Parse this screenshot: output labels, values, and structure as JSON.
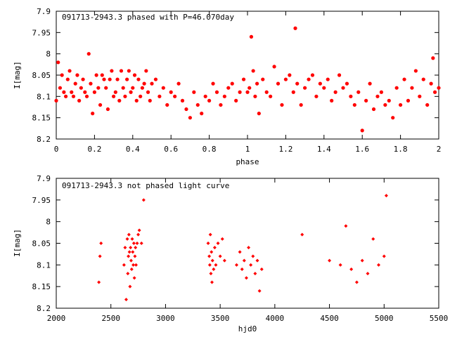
{
  "colors": {
    "points": "#ff0000",
    "axes": "#000000",
    "background": "#ffffff"
  },
  "chart_data": [
    {
      "type": "scatter",
      "title": "091713-2943.3 phased with P=46.070day",
      "xlabel": "phase",
      "ylabel": "I[mag]",
      "xlim": [
        0,
        2
      ],
      "ylim": [
        8.2,
        7.9
      ],
      "y_inverted": true,
      "marker": "filled-circle",
      "xticks": [
        "0",
        "0.2",
        "0.4",
        "0.6",
        "0.8",
        "1",
        "1.2",
        "1.4",
        "1.6",
        "1.8",
        "2"
      ],
      "yticks": [
        "7.9",
        "7.95",
        "8",
        "8.05",
        "8.1",
        "8.15",
        "8.2"
      ],
      "xtick_values": [
        0,
        0.2,
        0.4,
        0.6,
        0.8,
        1.0,
        1.2,
        1.4,
        1.6,
        1.8,
        2.0
      ],
      "ytick_values": [
        7.9,
        7.95,
        8.0,
        8.05,
        8.1,
        8.15,
        8.2
      ],
      "series": [
        {
          "x": [
            0.0,
            0.01,
            0.02,
            0.03,
            0.04,
            0.05,
            0.06,
            0.07,
            0.08,
            0.09,
            0.1,
            0.11,
            0.12,
            0.13,
            0.14,
            0.15,
            0.16,
            0.17,
            0.18,
            0.19,
            0.2,
            0.21,
            0.22,
            0.23,
            0.24,
            0.25,
            0.26,
            0.27,
            0.28,
            0.29,
            0.3,
            0.31,
            0.32,
            0.33,
            0.34,
            0.35,
            0.36,
            0.37,
            0.38,
            0.39,
            0.4,
            0.41,
            0.42,
            0.43,
            0.44,
            0.45,
            0.46,
            0.47,
            0.48,
            0.49,
            0.5,
            0.52,
            0.54,
            0.56,
            0.58,
            0.6,
            0.62,
            0.64,
            0.66,
            0.68,
            0.7,
            0.72,
            0.74,
            0.76,
            0.78,
            0.8,
            0.82,
            0.84,
            0.86,
            0.88,
            0.9,
            0.92,
            0.94,
            0.96,
            0.98,
            1.0,
            1.01,
            1.02,
            1.03,
            1.04,
            1.05,
            1.06,
            1.08,
            1.1,
            1.12,
            1.14,
            1.16,
            1.18,
            1.2,
            1.22,
            1.24,
            1.25,
            1.26,
            1.28,
            1.3,
            1.32,
            1.34,
            1.36,
            1.38,
            1.4,
            1.42,
            1.44,
            1.46,
            1.48,
            1.5,
            1.52,
            1.54,
            1.56,
            1.58,
            1.6,
            1.62,
            1.64,
            1.66,
            1.68,
            1.7,
            1.72,
            1.74,
            1.76,
            1.78,
            1.8,
            1.82,
            1.84,
            1.86,
            1.88,
            1.9,
            1.92,
            1.94,
            1.96,
            1.97,
            1.98,
            2.0
          ],
          "y": [
            8.11,
            8.02,
            8.08,
            8.05,
            8.09,
            8.1,
            8.06,
            8.04,
            8.09,
            8.1,
            8.07,
            8.05,
            8.11,
            8.08,
            8.06,
            8.09,
            8.1,
            8.0,
            8.07,
            8.14,
            8.09,
            8.05,
            8.08,
            8.12,
            8.05,
            8.06,
            8.08,
            8.13,
            8.06,
            8.04,
            8.1,
            8.09,
            8.06,
            8.11,
            8.04,
            8.08,
            8.1,
            8.06,
            8.04,
            8.09,
            8.08,
            8.05,
            8.11,
            8.06,
            8.1,
            8.08,
            8.07,
            8.04,
            8.09,
            8.11,
            8.07,
            8.06,
            8.1,
            8.08,
            8.12,
            8.09,
            8.1,
            8.07,
            8.11,
            8.13,
            8.15,
            8.09,
            8.12,
            8.14,
            8.1,
            8.11,
            8.07,
            8.09,
            8.12,
            8.1,
            8.08,
            8.07,
            8.11,
            8.09,
            8.06,
            8.09,
            8.08,
            7.96,
            8.04,
            8.1,
            8.07,
            8.14,
            8.06,
            8.09,
            8.1,
            8.03,
            8.07,
            8.12,
            8.06,
            8.05,
            8.09,
            7.94,
            8.07,
            8.12,
            8.08,
            8.06,
            8.05,
            8.1,
            8.07,
            8.08,
            8.06,
            8.11,
            8.09,
            8.05,
            8.08,
            8.07,
            8.1,
            8.12,
            8.09,
            8.18,
            8.11,
            8.07,
            8.13,
            8.1,
            8.09,
            8.12,
            8.11,
            8.15,
            8.08,
            8.12,
            8.06,
            8.11,
            8.08,
            8.04,
            8.1,
            8.06,
            8.12,
            8.07,
            8.01,
            8.09,
            8.08
          ]
        }
      ]
    },
    {
      "type": "scatter",
      "title": "091713-2943.3 not phased light curve",
      "xlabel": "hjd0",
      "ylabel": "I[mag]",
      "xlim": [
        2000,
        5500
      ],
      "ylim": [
        8.2,
        7.9
      ],
      "y_inverted": true,
      "marker": "diamond",
      "xticks": [
        "2000",
        "2500",
        "3000",
        "3500",
        "4000",
        "4500",
        "5000",
        "5500"
      ],
      "yticks": [
        "7.9",
        "7.95",
        "8",
        "8.05",
        "8.1",
        "8.15",
        "8.2"
      ],
      "xtick_values": [
        2000,
        2500,
        3000,
        3500,
        4000,
        4500,
        5000,
        5500
      ],
      "ytick_values": [
        7.9,
        7.95,
        8.0,
        8.05,
        8.1,
        8.15,
        8.2
      ],
      "series": [
        {
          "x": [
            2390,
            2400,
            2410,
            2620,
            2630,
            2640,
            2650,
            2655,
            2660,
            2665,
            2670,
            2675,
            2680,
            2685,
            2690,
            2695,
            2700,
            2705,
            2710,
            2715,
            2720,
            2725,
            2730,
            2740,
            2750,
            2760,
            2780,
            2800,
            3390,
            3400,
            3405,
            3410,
            3415,
            3420,
            3425,
            3430,
            3440,
            3450,
            3460,
            3480,
            3500,
            3520,
            3540,
            3650,
            3680,
            3700,
            3720,
            3740,
            3760,
            3780,
            3800,
            3820,
            3840,
            3860,
            3880,
            4250,
            4500,
            4600,
            4650,
            4700,
            4750,
            4800,
            4850,
            4900,
            4950,
            5000,
            5020
          ],
          "y": [
            8.14,
            8.08,
            8.05,
            8.1,
            8.06,
            8.18,
            8.04,
            8.12,
            8.08,
            8.03,
            8.07,
            8.15,
            8.06,
            8.09,
            8.11,
            8.04,
            8.07,
            8.1,
            8.05,
            8.13,
            8.08,
            8.06,
            8.1,
            8.05,
            8.03,
            8.02,
            8.05,
            7.95,
            8.05,
            8.08,
            8.1,
            8.03,
            8.12,
            8.07,
            8.14,
            8.09,
            8.11,
            8.06,
            8.1,
            8.05,
            8.08,
            8.04,
            8.09,
            8.1,
            8.07,
            8.11,
            8.09,
            8.13,
            8.06,
            8.1,
            8.08,
            8.12,
            8.09,
            8.16,
            8.11,
            8.03,
            8.09,
            8.1,
            8.01,
            8.11,
            8.14,
            8.09,
            8.12,
            8.04,
            8.1,
            8.08,
            7.94
          ]
        }
      ]
    }
  ]
}
